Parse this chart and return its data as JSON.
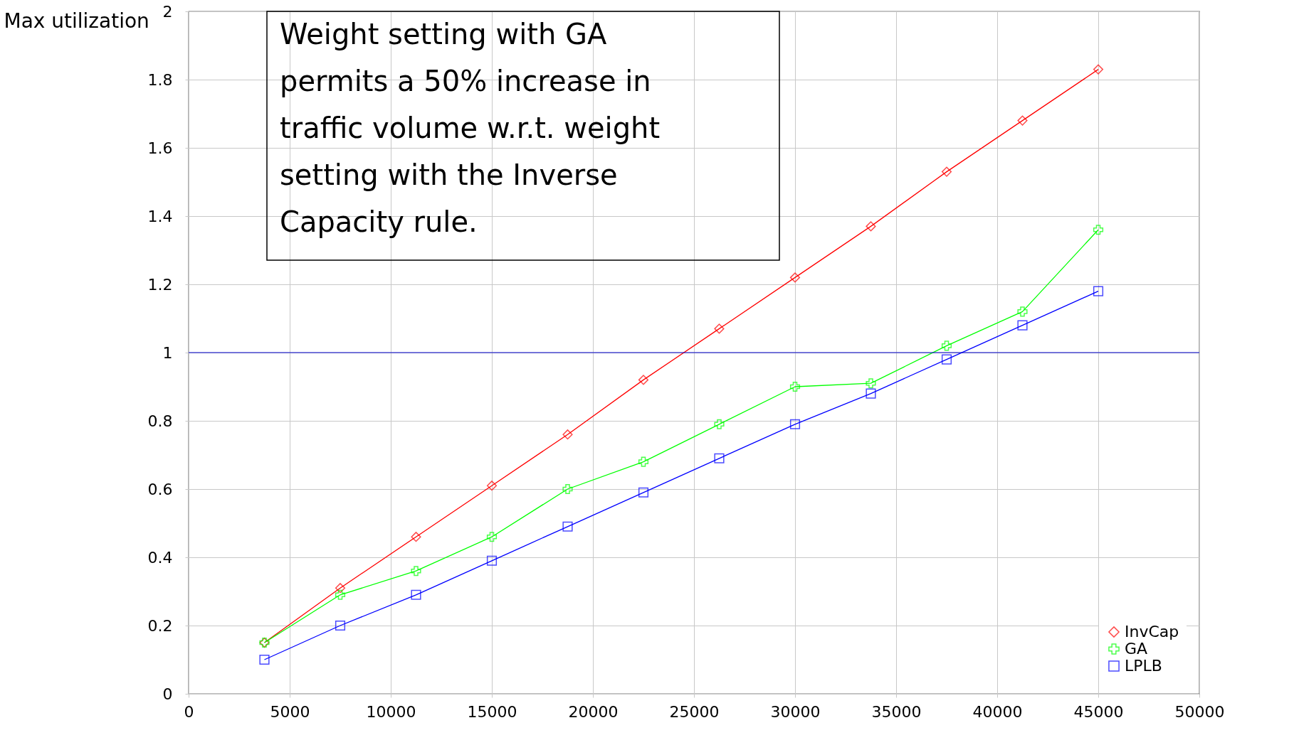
{
  "chart_data": {
    "type": "line",
    "ylabel": "Max utilization",
    "x": [
      3750,
      7500,
      11250,
      15000,
      18750,
      22500,
      26250,
      30000,
      33750,
      37500,
      41250,
      45000
    ],
    "series": [
      {
        "name": "InvCap",
        "color": "#ff0000",
        "marker": "diamond",
        "values": [
          0.15,
          0.31,
          0.46,
          0.61,
          0.76,
          0.92,
          1.07,
          1.22,
          1.37,
          1.53,
          1.68,
          1.83
        ]
      },
      {
        "name": "GA",
        "color": "#00ff00",
        "marker": "cross",
        "values": [
          0.15,
          0.29,
          0.36,
          0.46,
          0.6,
          0.68,
          0.79,
          0.9,
          0.91,
          1.02,
          1.12,
          1.36
        ]
      },
      {
        "name": "LPLB",
        "color": "#0000ff",
        "marker": "square",
        "values": [
          0.1,
          0.2,
          0.29,
          0.39,
          0.49,
          0.59,
          0.69,
          0.79,
          0.88,
          0.98,
          1.08,
          1.18
        ]
      }
    ],
    "xlim": [
      0,
      50000
    ],
    "xticks": [
      0,
      5000,
      10000,
      15000,
      20000,
      25000,
      30000,
      35000,
      40000,
      45000,
      50000
    ],
    "ylim": [
      0,
      2
    ],
    "yticks": [
      0,
      0.2,
      0.4,
      0.6,
      0.8,
      1,
      1.2,
      1.4,
      1.6,
      1.8,
      2
    ],
    "ref_lines": [
      {
        "axis": "y",
        "value": 1,
        "color": "#0000cc"
      }
    ],
    "annotations": [
      "Weight setting with GA permits a 50% increase in traffic volume w.r.t.  weight setting with the Inverse Capacity rule."
    ],
    "grid": true,
    "legend": "bottom right",
    "line_style": "solid"
  }
}
